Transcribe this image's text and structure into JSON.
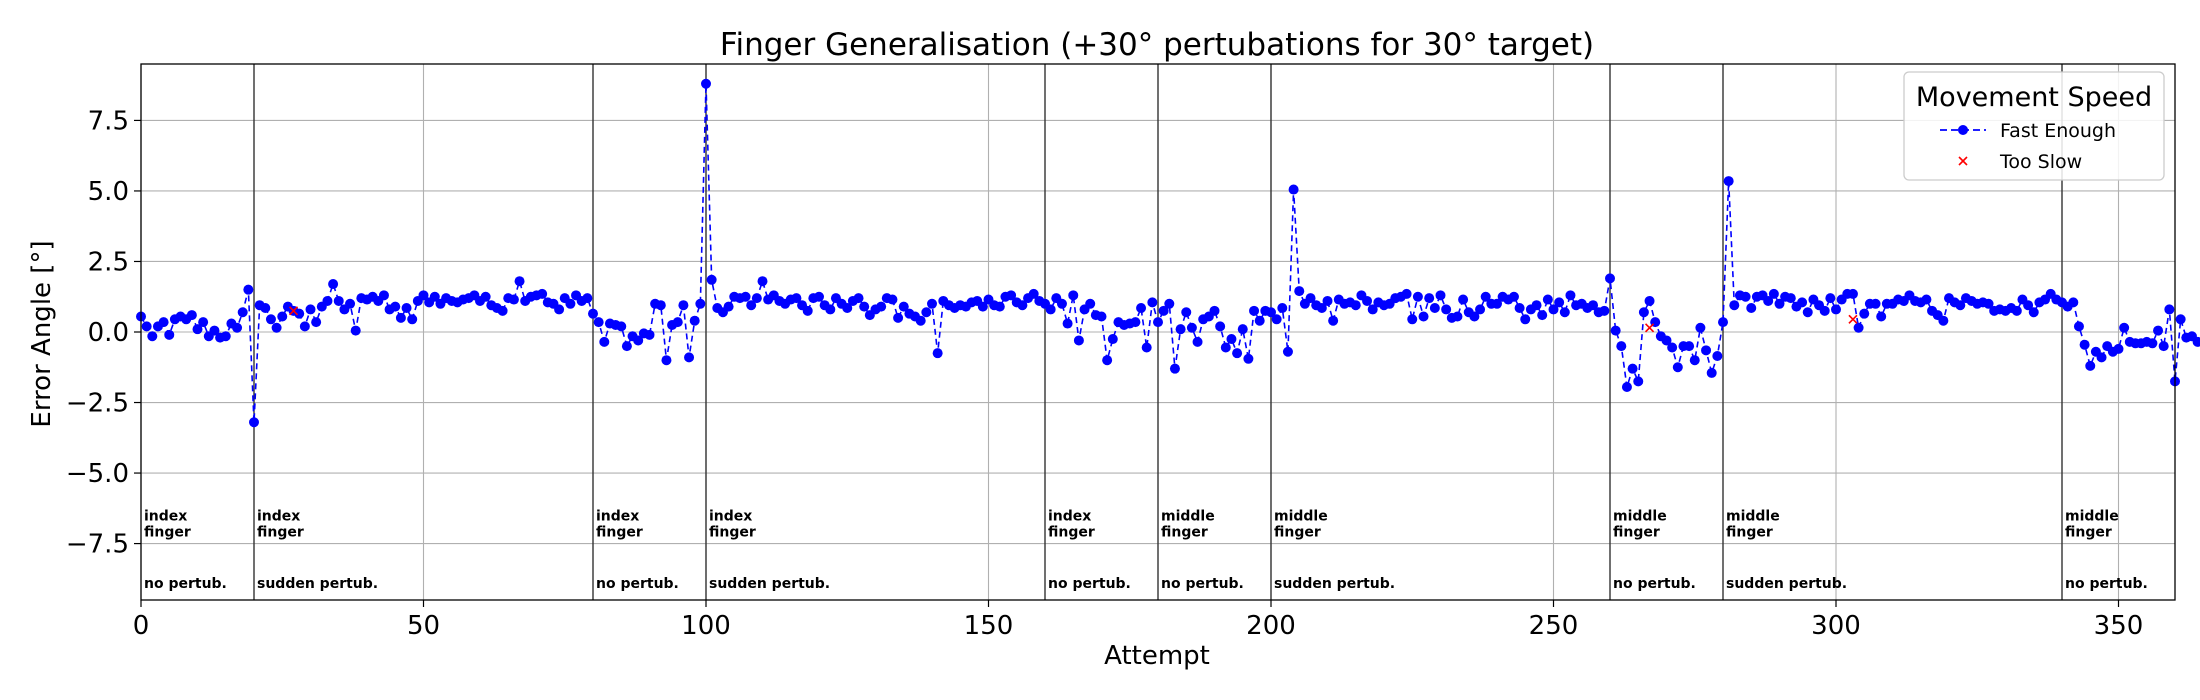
{
  "chart_data": {
    "type": "line",
    "title": "Finger Generalisation (+30° pertubations for 30° target)",
    "xlabel": "Attempt",
    "ylabel": "Error Angle [°]",
    "xlim": [
      0,
      360
    ],
    "ylim": [
      -9.5,
      9.5
    ],
    "xticks": [
      0,
      50,
      100,
      150,
      200,
      250,
      300,
      350
    ],
    "yticks": [
      -7.5,
      -5.0,
      -2.5,
      0.0,
      2.5,
      5.0,
      7.5
    ],
    "ytick_labels": [
      "−7.5",
      "−5.0",
      "−2.5",
      "0.0",
      "2.5",
      "5.0",
      "7.5"
    ],
    "grid": true,
    "legend": {
      "title": "Movement Speed",
      "position": "top-right",
      "entries": [
        "Fast Enough",
        "Too Slow"
      ]
    },
    "colors": {
      "fast": "#0000ff",
      "slow": "#ff0000",
      "phase_line": "#333333"
    },
    "phase_boundaries": [
      20,
      80,
      100,
      160,
      180,
      200,
      260,
      280,
      340
    ],
    "phases": [
      {
        "x": 0,
        "finger": "index\nfinger",
        "condition": "no pertub."
      },
      {
        "x": 20,
        "finger": "index\nfinger",
        "condition": "sudden pertub."
      },
      {
        "x": 80,
        "finger": "index\nfinger",
        "condition": "no pertub."
      },
      {
        "x": 100,
        "finger": "index\nfinger",
        "condition": "sudden pertub."
      },
      {
        "x": 160,
        "finger": "index\nfinger",
        "condition": "no pertub."
      },
      {
        "x": 180,
        "finger": "middle\nfinger",
        "condition": "no pertub."
      },
      {
        "x": 200,
        "finger": "middle\nfinger",
        "condition": "sudden pertub."
      },
      {
        "x": 260,
        "finger": "middle\nfinger",
        "condition": "no pertub."
      },
      {
        "x": 280,
        "finger": "middle\nfinger",
        "condition": "sudden pertub."
      },
      {
        "x": 340,
        "finger": "middle\nfinger",
        "condition": "no pertub."
      }
    ],
    "series": [
      {
        "name": "Fast Enough",
        "marker": "circle",
        "linestyle": "dashed",
        "x_start": 0,
        "values": [
          0.55,
          0.2,
          -0.15,
          0.2,
          0.35,
          -0.1,
          0.45,
          0.55,
          0.45,
          0.6,
          0.1,
          0.35,
          -0.15,
          0.05,
          -0.2,
          -0.15,
          0.3,
          0.15,
          0.7,
          1.5,
          -3.2,
          0.95,
          0.85,
          0.45,
          0.15,
          0.55,
          0.9,
          0.75,
          0.65,
          0.2,
          0.8,
          0.35,
          0.9,
          1.1,
          1.7,
          1.1,
          0.8,
          1.0,
          0.05,
          1.2,
          1.15,
          1.25,
          1.1,
          1.3,
          0.8,
          0.9,
          0.5,
          0.85,
          0.45,
          1.1,
          1.3,
          1.05,
          1.25,
          1.0,
          1.2,
          1.1,
          1.05,
          1.15,
          1.2,
          1.3,
          1.1,
          1.25,
          0.95,
          0.85,
          0.75,
          1.2,
          1.15,
          1.8,
          1.1,
          1.25,
          1.3,
          1.35,
          1.05,
          1.0,
          0.8,
          1.2,
          1.0,
          1.3,
          1.1,
          1.2,
          0.65,
          0.35,
          -0.35,
          0.3,
          0.25,
          0.2,
          -0.5,
          -0.15,
          -0.3,
          -0.05,
          -0.1,
          1.0,
          0.95,
          -1.0,
          0.25,
          0.35,
          0.95,
          -0.9,
          0.4,
          1.0,
          8.8,
          1.85,
          0.85,
          0.7,
          0.9,
          1.25,
          1.2,
          1.25,
          0.95,
          1.2,
          1.8,
          1.15,
          1.3,
          1.1,
          1.0,
          1.15,
          1.2,
          0.95,
          0.75,
          1.2,
          1.25,
          0.95,
          0.8,
          1.2,
          1.0,
          0.85,
          1.1,
          1.2,
          0.9,
          0.6,
          0.8,
          0.9,
          1.2,
          1.15,
          0.5,
          0.9,
          0.65,
          0.55,
          0.4,
          0.7,
          1.0,
          -0.75,
          1.1,
          0.95,
          0.85,
          0.95,
          0.9,
          1.05,
          1.1,
          0.9,
          1.15,
          0.95,
          0.9,
          1.25,
          1.3,
          1.05,
          0.95,
          1.2,
          1.35,
          1.1,
          1.0,
          0.8,
          1.2,
          1.0,
          0.3,
          1.3,
          -0.3,
          0.8,
          1.0,
          0.6,
          0.55,
          -1.0,
          -0.25,
          0.35,
          0.25,
          0.3,
          0.35,
          0.85,
          -0.55,
          1.05,
          0.35,
          0.75,
          1.0,
          -1.3,
          0.1,
          0.7,
          0.15,
          -0.35,
          0.45,
          0.55,
          0.75,
          0.2,
          -0.55,
          -0.25,
          -0.75,
          0.1,
          -0.95,
          0.75,
          0.4,
          0.75,
          0.7,
          0.45,
          0.85,
          -0.7,
          5.05,
          1.45,
          1.0,
          1.2,
          0.95,
          0.85,
          1.1,
          0.4,
          1.15,
          1.0,
          1.05,
          0.95,
          1.3,
          1.1,
          0.8,
          1.05,
          0.95,
          1.0,
          1.2,
          1.25,
          1.35,
          0.45,
          1.25,
          0.55,
          1.2,
          0.85,
          1.3,
          0.8,
          0.5,
          0.55,
          1.15,
          0.7,
          0.55,
          0.8,
          1.25,
          1.0,
          1.0,
          1.25,
          1.15,
          1.25,
          0.85,
          0.45,
          0.8,
          0.95,
          0.6,
          1.15,
          0.8,
          1.05,
          0.7,
          1.3,
          0.95,
          1.0,
          0.85,
          0.95,
          0.7,
          0.75,
          1.9,
          0.05,
          -0.5,
          -1.95,
          -1.3,
          -1.75,
          0.7,
          1.1,
          0.35,
          -0.15,
          -0.3,
          -0.55,
          -1.25,
          -0.5,
          -0.5,
          -1.0,
          0.15,
          -0.65,
          -1.45,
          -0.85,
          0.35,
          5.35,
          0.95,
          1.3,
          1.25,
          0.85,
          1.25,
          1.3,
          1.1,
          1.35,
          1.0,
          1.25,
          1.2,
          0.9,
          1.05,
          0.7,
          1.15,
          0.95,
          0.75,
          1.2,
          0.8,
          1.15,
          1.35,
          1.35,
          0.15,
          0.65,
          1.0,
          1.0,
          0.55,
          1.0,
          1.0,
          1.15,
          1.1,
          1.3,
          1.1,
          1.05,
          1.15,
          0.75,
          0.6,
          0.4,
          1.2,
          1.05,
          0.95,
          1.2,
          1.1,
          1.0,
          1.05,
          1.0,
          0.75,
          0.8,
          0.75,
          0.85,
          0.75,
          1.15,
          0.95,
          0.7,
          1.05,
          1.15,
          1.35,
          1.15,
          1.05,
          0.9,
          1.05,
          0.2,
          -0.45,
          -1.2,
          -0.7,
          -0.9,
          -0.5,
          -0.7,
          -0.6,
          0.15,
          -0.35,
          -0.4,
          -0.4,
          -0.35,
          -0.4,
          0.05,
          -0.5,
          0.8,
          -1.75,
          0.45,
          -0.2,
          -0.15,
          -0.35
        ]
      },
      {
        "name": "Too Slow",
        "marker": "x",
        "linestyle": "none",
        "points": [
          [
            27,
            0.75
          ],
          [
            267,
            0.15
          ],
          [
            303,
            0.45
          ]
        ]
      }
    ]
  }
}
